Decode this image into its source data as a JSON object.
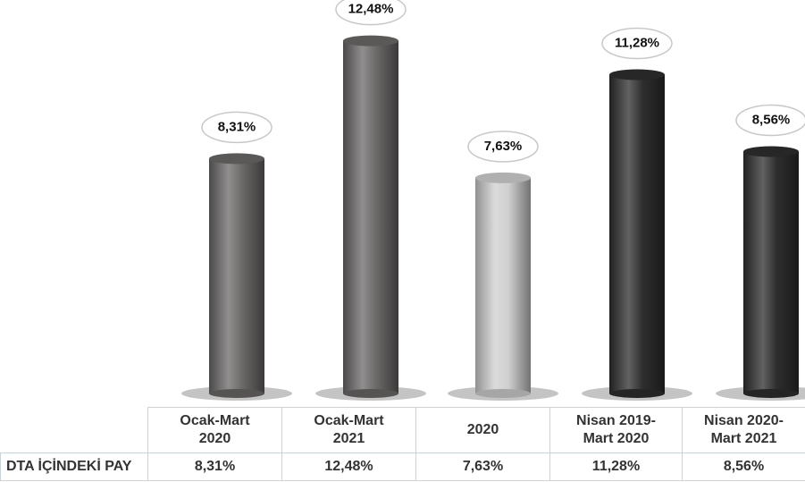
{
  "chart_data": {
    "type": "cylinder-bar",
    "categories": [
      "Ocak-Mart\n2020",
      "Ocak-Mart\n2021",
      "2020",
      "Nisan 2019-\nMart 2020",
      "Nisan 2020-\nMart 2021"
    ],
    "series": [
      {
        "name": "DTA İÇİNDEKİ PAY",
        "values": [
          8.31,
          12.48,
          7.63,
          11.28,
          8.56
        ],
        "value_labels": [
          "8,31%",
          "12,48%",
          "7,63%",
          "11,28%",
          "8,56%"
        ],
        "colors": [
          "#6b6868",
          "#6b6868",
          "#cfcfcf",
          "#2e2e2e",
          "#2e2e2e"
        ]
      }
    ]
  }
}
